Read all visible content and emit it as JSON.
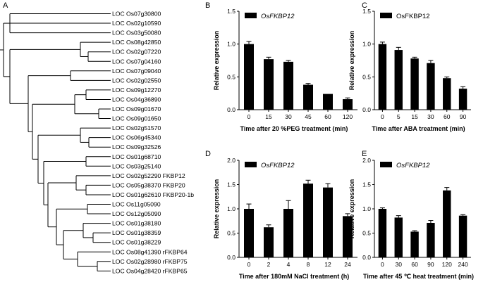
{
  "tree": {
    "panel_label": "A",
    "leaves": [
      "LOC Os07g30800",
      "LOC Os02g10590",
      "LOC Os03g50080",
      "LOC Os08g42850",
      "LOC Os02g07220",
      "LOC Os07g04160",
      "LOC Os07g09040",
      "LOC Os02g02550",
      "LOC Os09g12270",
      "LOC Os04g36890",
      "LOC Os09g01670",
      "LOC Os09g01650",
      "LOC Os02g51570",
      "LOC Os06g45340",
      "LOC Os09g32526",
      "LOC Os01g68710",
      "LOC Os03g25140",
      "LOC Os02g52290 FKBP12",
      "LOC Os05g38370 FKBP20",
      "LOC Os01g62610 FKBP20-1b",
      "LOC Os11g05090",
      "LOC Os12g05090",
      "LOC Os01g38180",
      "LOC Os01g38359",
      "LOC Os01g38229",
      "LOC Os08g41390 rFKBP64",
      "LOC Os02g28980 rFKBP75",
      "LOC Os04g28420 rFKBP65"
    ]
  },
  "chart_data": [
    {
      "panel": "B",
      "type": "bar",
      "legend": "OsFKBP12",
      "legend_italic": true,
      "categories": [
        "0",
        "15",
        "30",
        "45",
        "60",
        "120"
      ],
      "values": [
        1.0,
        0.77,
        0.73,
        0.38,
        0.24,
        0.16
      ],
      "errors": [
        0.04,
        0.03,
        0.02,
        0.02,
        0.0,
        0.02
      ],
      "xlabel": "Time after 20 %PEG treatment (min)",
      "ylabel": "Relative expression",
      "ylim": [
        0,
        1.5
      ],
      "yticks": [
        "0.0",
        "0.5",
        "1.0",
        "1.5"
      ]
    },
    {
      "panel": "C",
      "type": "bar",
      "legend": "OsFKBP12",
      "legend_italic": false,
      "categories": [
        "0",
        "5",
        "15",
        "30",
        "60",
        "90"
      ],
      "values": [
        1.0,
        0.91,
        0.78,
        0.71,
        0.48,
        0.32
      ],
      "errors": [
        0.03,
        0.04,
        0.02,
        0.04,
        0.02,
        0.03
      ],
      "xlabel": "Time after ABA treatment (min)",
      "ylabel": "Relative expression",
      "ylim": [
        0,
        1.5
      ],
      "yticks": [
        "0.0",
        "0.5",
        "1.0",
        "1.5"
      ]
    },
    {
      "panel": "D",
      "type": "bar",
      "legend": "OsFKBP12",
      "legend_italic": true,
      "categories": [
        "0",
        "2",
        "4",
        "8",
        "12",
        "24"
      ],
      "values": [
        1.0,
        0.62,
        1.0,
        1.52,
        1.44,
        0.85
      ],
      "errors": [
        0.1,
        0.05,
        0.17,
        0.07,
        0.08,
        0.05
      ],
      "xlabel": "Time after 180mM NaCl treatment (h)",
      "ylabel": "Relative expression",
      "ylim": [
        0,
        2.0
      ],
      "yticks": [
        "0.0",
        "0.5",
        "1.0",
        "1.5",
        "2.0"
      ]
    },
    {
      "panel": "E",
      "type": "bar",
      "legend": "OsFKBP12",
      "legend_italic": true,
      "categories": [
        "0",
        "30",
        "60",
        "90",
        "120",
        "240"
      ],
      "values": [
        1.0,
        0.82,
        0.53,
        0.71,
        1.38,
        0.86
      ],
      "errors": [
        0.02,
        0.04,
        0.02,
        0.05,
        0.06,
        0.02
      ],
      "xlabel": "Time after 45 ℃ heat treatment (min)",
      "ylabel": "Relative expression",
      "ylim": [
        0,
        2.0
      ],
      "yticks": [
        "0.0",
        "0.5",
        "1.0",
        "1.5",
        "2.0"
      ]
    }
  ]
}
